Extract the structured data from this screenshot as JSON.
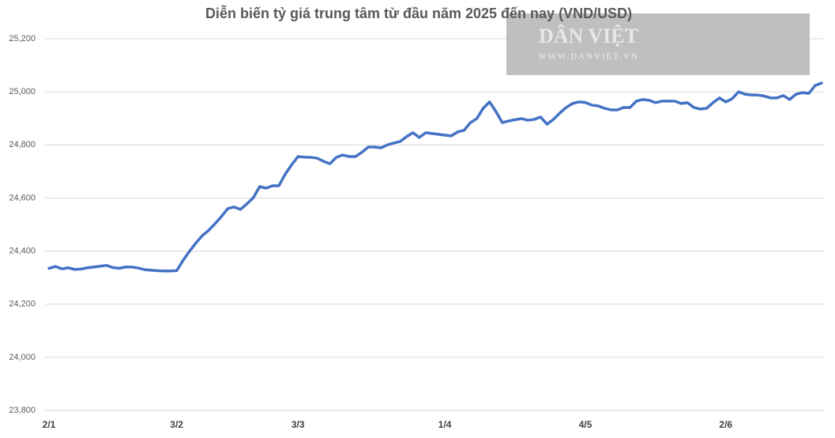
{
  "chart_data": {
    "type": "line",
    "title": "Diễn biến tỷ giá trung tâm từ đầu năm 2025 đến nay (VND/USD)",
    "watermark": {
      "brand": "DÂN VIỆT",
      "url": "WWW.DANVIET.VN"
    },
    "categories": [
      "2/1",
      null,
      null,
      null,
      null,
      null,
      null,
      null,
      null,
      null,
      null,
      null,
      null,
      null,
      null,
      null,
      null,
      null,
      null,
      null,
      "3/2",
      null,
      null,
      null,
      null,
      null,
      null,
      null,
      null,
      null,
      null,
      null,
      null,
      null,
      null,
      null,
      null,
      null,
      null,
      "3/3",
      null,
      null,
      null,
      null,
      null,
      null,
      null,
      null,
      null,
      null,
      null,
      null,
      null,
      null,
      null,
      null,
      null,
      null,
      null,
      null,
      null,
      null,
      "1/4",
      null,
      null,
      null,
      null,
      null,
      null,
      null,
      null,
      null,
      null,
      null,
      null,
      null,
      null,
      null,
      null,
      null,
      null,
      null,
      null,
      null,
      "4/5",
      null,
      null,
      null,
      null,
      null,
      null,
      null,
      null,
      null,
      null,
      null,
      null,
      null,
      null,
      null,
      null,
      null,
      null,
      null,
      null,
      null,
      "2/6",
      null,
      null,
      null,
      null,
      null,
      null,
      null,
      null,
      null,
      null,
      null,
      null,
      null,
      null,
      null
    ],
    "series": [
      {
        "color": "#4472c4",
        "values": [
          24335,
          24342,
          24333,
          24337,
          24331,
          24332,
          24337,
          24340,
          24343,
          24346,
          24338,
          24335,
          24340,
          24340,
          24336,
          24330,
          24328,
          24326,
          24325,
          24325,
          24326,
          24365,
          24399,
          24430,
          24458,
          24478,
          24503,
          24530,
          24560,
          24566,
          24557,
          24578,
          24601,
          24643,
          24637,
          24646,
          24646,
          24690,
          24725,
          24756,
          24754,
          24753,
          24750,
          24738,
          24729,
          24753,
          24762,
          24756,
          24756,
          24772,
          24792,
          24792,
          24789,
          24800,
          24807,
          24813,
          24831,
          24846,
          24828,
          24846,
          24843,
          24840,
          24837,
          24834,
          24849,
          24855,
          24884,
          24899,
          24938,
          24962,
          24926,
          24884,
          24890,
          24895,
          24899,
          24893,
          24896,
          24905,
          24878,
          24896,
          24920,
          24941,
          24956,
          24962,
          24960,
          24950,
          24947,
          24938,
          24932,
          24932,
          24941,
          24941,
          24965,
          24971,
          24968,
          24959,
          24965,
          24965,
          24965,
          24956,
          24959,
          24941,
          24935,
          24938,
          24959,
          24977,
          24962,
          24974,
          25000,
          24991,
          24988,
          24988,
          24984,
          24977,
          24977,
          24986,
          24971,
          24991,
          24997,
          24994,
          25024,
          25033
        ]
      }
    ],
    "ylim": [
      23800,
      25200
    ],
    "yticks": [
      {
        "value": 23800,
        "label": "23,800"
      },
      {
        "value": 24000,
        "label": "24,000"
      },
      {
        "value": 24200,
        "label": "24,200"
      },
      {
        "value": 24400,
        "label": "24,400"
      },
      {
        "value": 24600,
        "label": "24,600"
      },
      {
        "value": 24800,
        "label": "24,800"
      },
      {
        "value": 25000,
        "label": "25,000"
      },
      {
        "value": 25200,
        "label": "25,200"
      }
    ],
    "grid": true
  }
}
